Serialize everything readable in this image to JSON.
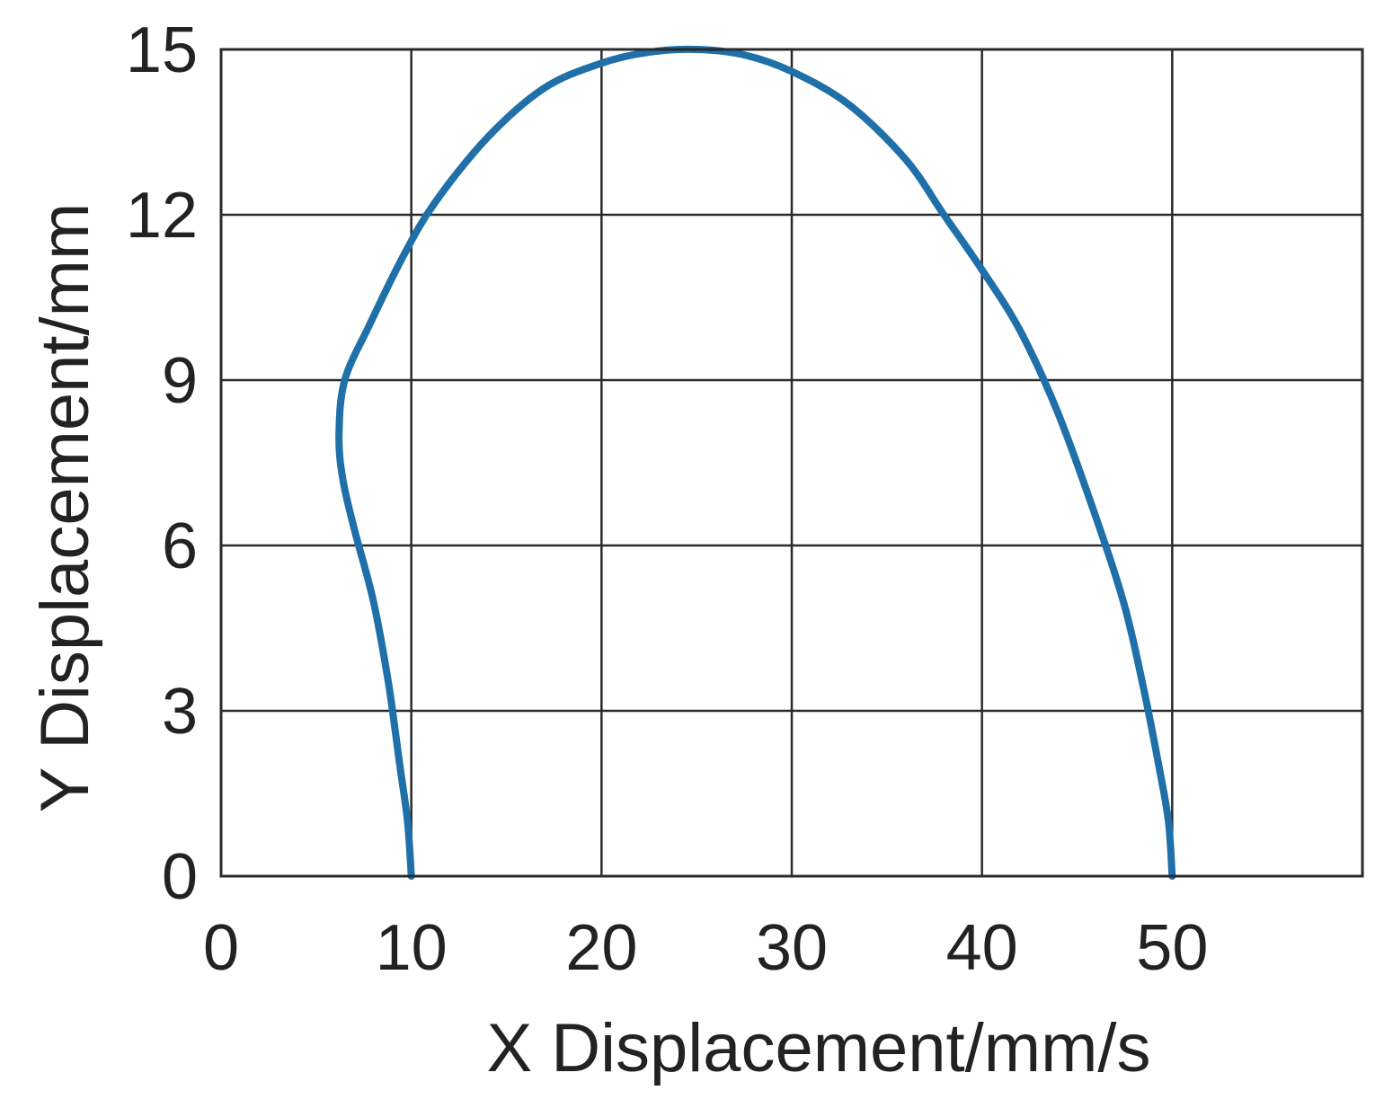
{
  "chart_data": {
    "type": "line",
    "title": "",
    "xlabel": "X Displacement/mm/s",
    "ylabel": "Y Displacement/mm",
    "xlim": [
      0,
      60
    ],
    "ylim": [
      0,
      15
    ],
    "xticks": [
      0,
      10,
      20,
      30,
      40,
      50
    ],
    "xgrid": [
      0,
      10,
      20,
      30,
      40,
      50,
      60
    ],
    "yticks": [
      0,
      3,
      6,
      9,
      12,
      15
    ],
    "grid": true,
    "legend": "none",
    "series": [
      {
        "color": "#1f6fa8",
        "points": [
          [
            10.0,
            0.0
          ],
          [
            9.8,
            1.0
          ],
          [
            9.4,
            2.0
          ],
          [
            8.8,
            3.5
          ],
          [
            8.0,
            5.0
          ],
          [
            7.0,
            6.3
          ],
          [
            6.4,
            7.2
          ],
          [
            6.2,
            8.0
          ],
          [
            6.5,
            9.0
          ],
          [
            7.8,
            10.0
          ],
          [
            9.5,
            11.2
          ],
          [
            11.2,
            12.2
          ],
          [
            14.0,
            13.4
          ],
          [
            17.0,
            14.3
          ],
          [
            20.0,
            14.75
          ],
          [
            22.5,
            14.95
          ],
          [
            25.0,
            15.0
          ],
          [
            27.5,
            14.9
          ],
          [
            30.0,
            14.6
          ],
          [
            33.0,
            14.0
          ],
          [
            36.0,
            13.0
          ],
          [
            38.0,
            12.0
          ],
          [
            40.0,
            11.0
          ],
          [
            42.0,
            9.9
          ],
          [
            44.0,
            8.4
          ],
          [
            46.0,
            6.5
          ],
          [
            47.5,
            4.9
          ],
          [
            48.5,
            3.4
          ],
          [
            49.3,
            2.0
          ],
          [
            49.8,
            1.0
          ],
          [
            50.0,
            0.0
          ]
        ]
      }
    ]
  }
}
